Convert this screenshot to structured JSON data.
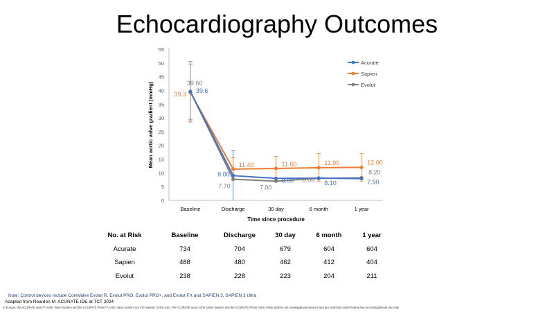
{
  "page_title": "Echocardiography Outcomes",
  "chart_data": {
    "type": "line",
    "title": "",
    "xlabel": "Time since procedure",
    "ylabel": "Mean aortic valve gradient (mmHg)",
    "ylim": [
      0,
      55
    ],
    "yticks": [
      0,
      5,
      10,
      15,
      20,
      25,
      30,
      35,
      40,
      45,
      50,
      55
    ],
    "categories": [
      "Baseline",
      "Discharge",
      "30 day",
      "6 month",
      "1 year"
    ],
    "legend_position": "top-right",
    "series": [
      {
        "name": "Acurate",
        "color": "#4472c4",
        "values": [
          39.6,
          9.0,
          8.0,
          8.1,
          7.9
        ],
        "labels": [
          "39.6",
          "9.00",
          "8.00",
          "8.10",
          "7.90"
        ]
      },
      {
        "name": "Sapien",
        "color": "#ed7d31",
        "values": [
          39.3,
          11.4,
          11.6,
          11.9,
          12.0
        ],
        "labels": [
          "39.3",
          "11.40",
          "11.60",
          "11.90",
          "12.00"
        ]
      },
      {
        "name": "Evolut",
        "color": "#7f7f7f",
        "values": [
          39.6,
          7.7,
          7.0,
          8.0,
          8.2
        ],
        "labels": [
          "39.60",
          "7.70",
          "7.00",
          "8.00",
          "8.20"
        ]
      }
    ],
    "error_bars": [
      {
        "series": "Acurate",
        "low": [
          29.5,
          0,
          0,
          0,
          0
        ],
        "high": [
          50.5,
          18.0,
          0,
          0,
          0
        ]
      },
      {
        "series": "Sapien",
        "low": [
          29.0,
          7.5,
          7.0,
          7.0,
          7.0
        ],
        "high": [
          49.5,
          15.5,
          16.0,
          17.0,
          17.0
        ]
      },
      {
        "series": "Evolut",
        "low": [
          28.5,
          0,
          0,
          0,
          0
        ],
        "high": [
          50.5,
          0,
          0,
          0,
          0
        ]
      }
    ]
  },
  "risk_table": {
    "header": [
      "No. at Risk",
      "Baseline",
      "Discharge",
      "30 day",
      "6 month",
      "1 year"
    ],
    "rows": [
      {
        "label": "Acurate",
        "values": [
          "734",
          "704",
          "679",
          "604",
          "604"
        ]
      },
      {
        "label": "Sapien",
        "values": [
          "488",
          "480",
          "462",
          "412",
          "404"
        ]
      },
      {
        "label": "Evolut",
        "values": [
          "238",
          "228",
          "223",
          "204",
          "211"
        ]
      }
    ]
  },
  "notes": {
    "control_note": "Note: Control devices include CoreValve Evolut R, Evolut PRO, Evolut PRO+, and Evolut FX and SAPIEN 3, SAPIEN 3 Ultra",
    "source": "Adapted from Reardon M.  ACURATE IDE at TCT 2024",
    "disclaimer": "In Europe, the ACURATE neo2™ Aortic Valve System and the ACURATE Prime™ Aortic Valve System are CE-marked. In the USA, the ACURATE neo2 Aortic Valve System and the ACURATE Prime Aortic Valve System are investigational devices and are restricted under federal law to investigational use only."
  }
}
